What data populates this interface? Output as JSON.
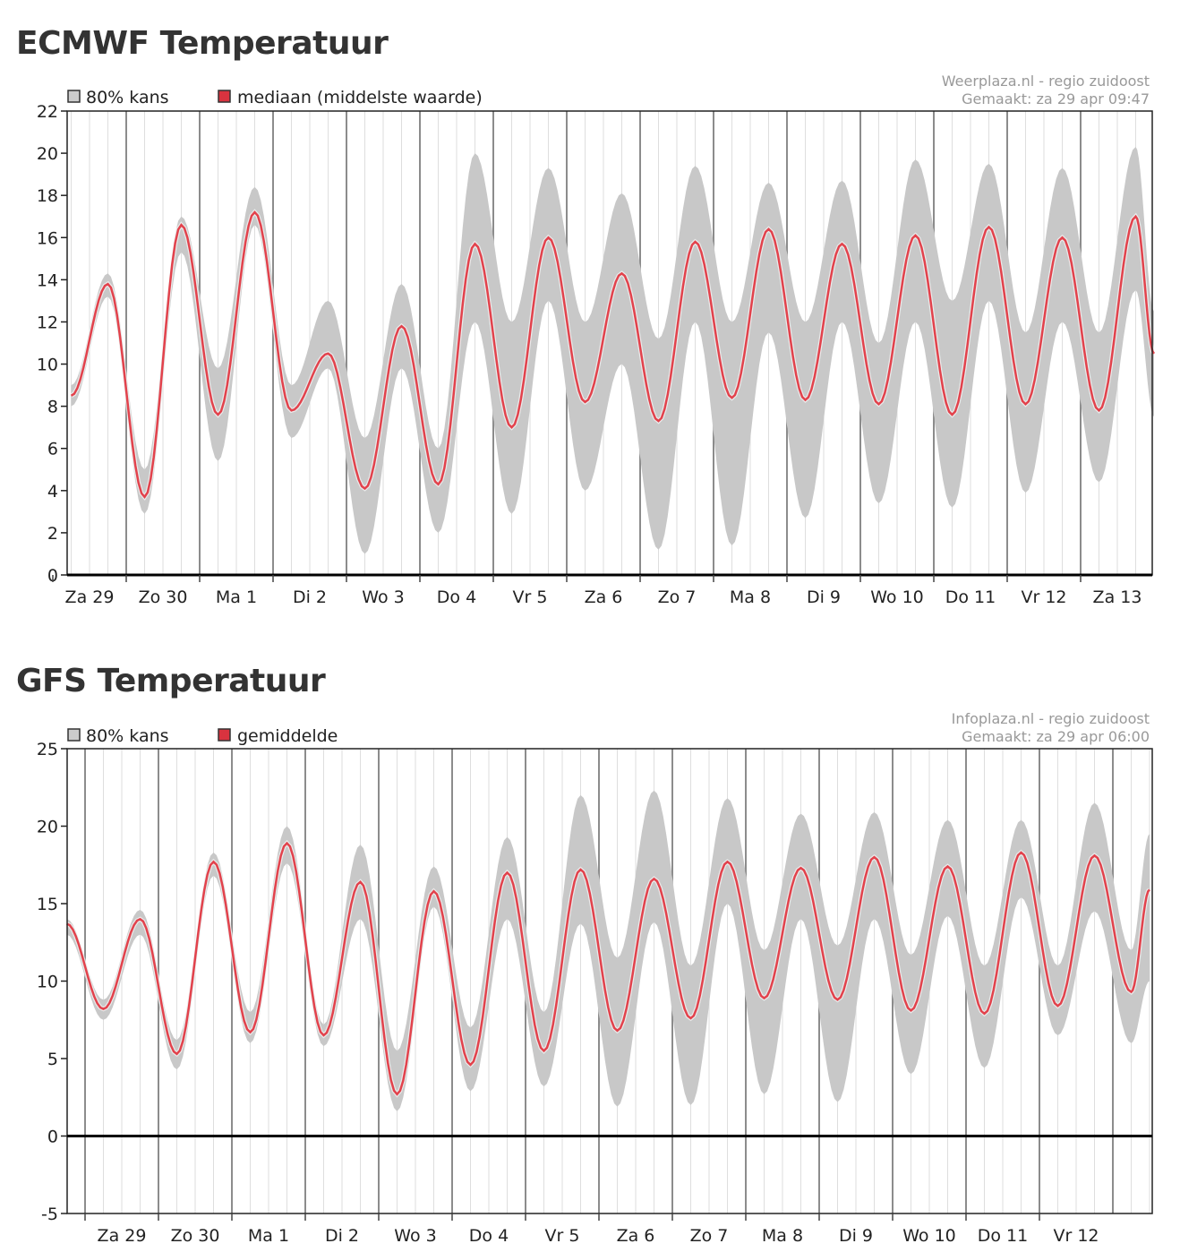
{
  "chart_data": [
    {
      "type": "area",
      "title": "ECMWF Temperatuur",
      "source": "Weerplaza.nl - regio zuidoost",
      "made": "Gemaakt: za 29 apr 09:47",
      "legend": [
        "80% kans",
        "mediaan (middelste waarde)"
      ],
      "legend_placement": "top-left",
      "xlabel": "",
      "ylabel": "",
      "ylim": [
        0,
        22
      ],
      "yticks": [
        "0",
        "2",
        "4",
        "6",
        "8",
        "10",
        "12",
        "14",
        "16",
        "18",
        "20",
        "22"
      ],
      "xlim_hours": [
        6,
        360
      ],
      "day_labels": [
        "Za 29",
        "Zo 30",
        "Ma 1",
        "Di 2",
        "Wo 3",
        "Do 4",
        "Vr 5",
        "Za 6",
        "Zo 7",
        "Ma 8",
        "Di 9",
        "Wo 10",
        "Do 11",
        "Vr 12",
        "Za 13"
      ],
      "hours": [
        6,
        18,
        30,
        42,
        54,
        66,
        78,
        90,
        102,
        114,
        126,
        138,
        150,
        162,
        174,
        186,
        198,
        210,
        222,
        234,
        246,
        258,
        270,
        282,
        294,
        306,
        318,
        330,
        342,
        354,
        360
      ],
      "series": [
        {
          "name": "mediaan (middelste waarde)",
          "values": [
            8.5,
            13.8,
            3.7,
            16.6,
            7.6,
            17.2,
            7.8,
            10.5,
            4.1,
            11.8,
            4.3,
            15.7,
            7.0,
            16.0,
            8.2,
            14.3,
            7.3,
            15.8,
            8.4,
            16.4,
            8.3,
            15.7,
            8.1,
            16.1,
            7.6,
            16.5,
            8.1,
            16.0,
            7.8,
            17.0,
            10.5
          ]
        },
        {
          "name": "80% kans (laag)",
          "values": [
            8.0,
            13.2,
            2.9,
            15.3,
            5.4,
            16.6,
            6.5,
            9.8,
            1.0,
            9.8,
            2.0,
            12.0,
            2.9,
            13.0,
            4.0,
            10.0,
            1.2,
            12.0,
            1.4,
            11.5,
            2.7,
            12.0,
            3.4,
            12.0,
            3.2,
            13.0,
            3.9,
            12.0,
            4.4,
            13.5,
            7.5
          ]
        },
        {
          "name": "80% kans (hoog)",
          "values": [
            9.0,
            14.3,
            5.0,
            17.0,
            9.8,
            18.4,
            9.0,
            13.0,
            6.5,
            13.8,
            6.0,
            20.0,
            12.0,
            19.3,
            12.0,
            18.1,
            11.2,
            19.4,
            12.0,
            18.6,
            12.0,
            18.7,
            11.0,
            19.7,
            13.0,
            19.5,
            11.5,
            19.3,
            11.5,
            20.3,
            12.5
          ]
        }
      ]
    },
    {
      "type": "area",
      "title": "GFS Temperatuur",
      "source": "Infoplaza.nl - regio zuidoost",
      "made": "Gemaakt: za 29 apr 06:00",
      "legend": [
        "80% kans",
        "gemiddelde"
      ],
      "legend_placement": "top-left",
      "xlabel": "",
      "ylabel": "",
      "ylim": [
        -5,
        25
      ],
      "yticks": [
        "-5",
        "0",
        "5",
        "10",
        "15",
        "20",
        "25"
      ],
      "xlim_hours": [
        -6,
        348
      ],
      "day_labels": [
        "Za 29",
        "Zo 30",
        "Ma 1",
        "Di 2",
        "Wo 3",
        "Do 4",
        "Vr 5",
        "Za 6",
        "Zo 7",
        "Ma 8",
        "Di 9",
        "Wo 10",
        "Do 11",
        "Vr 12"
      ],
      "hours": [
        -6,
        6,
        18,
        30,
        42,
        54,
        66,
        78,
        90,
        102,
        114,
        126,
        138,
        150,
        162,
        174,
        186,
        198,
        210,
        222,
        234,
        246,
        258,
        270,
        282,
        294,
        306,
        318,
        330,
        342,
        348
      ],
      "series": [
        {
          "name": "gemiddelde",
          "values": [
            13.7,
            8.2,
            14.0,
            5.3,
            17.7,
            6.7,
            18.9,
            6.5,
            16.4,
            2.7,
            15.8,
            4.6,
            17.0,
            5.5,
            17.2,
            6.8,
            16.6,
            7.6,
            17.7,
            8.9,
            17.3,
            8.8,
            18.0,
            8.1,
            17.4,
            7.9,
            18.3,
            8.4,
            18.1,
            9.3,
            15.9
          ]
        },
        {
          "name": "80% kans (laag)",
          "values": [
            13.0,
            7.5,
            13.0,
            4.3,
            16.8,
            6.0,
            17.6,
            5.8,
            14.0,
            1.6,
            14.8,
            2.9,
            14.0,
            3.2,
            13.7,
            1.9,
            13.8,
            2.0,
            15.0,
            2.7,
            14.0,
            2.2,
            14.0,
            4.0,
            14.2,
            4.4,
            15.4,
            6.5,
            14.5,
            6.0,
            10.0
          ]
        },
        {
          "name": "80% kans (hoog)",
          "values": [
            14.0,
            8.8,
            14.6,
            6.2,
            18.3,
            8.0,
            20.0,
            7.2,
            18.8,
            5.5,
            17.4,
            7.0,
            19.3,
            8.0,
            22.0,
            11.5,
            22.3,
            11.0,
            21.8,
            12.0,
            20.8,
            12.3,
            20.9,
            11.7,
            20.4,
            11.0,
            20.4,
            11.0,
            21.5,
            12.0,
            19.5
          ]
        }
      ]
    }
  ],
  "colors": {
    "band": "#c8c8c8",
    "line": "#e2424c",
    "legend_red": "#d9333f"
  }
}
